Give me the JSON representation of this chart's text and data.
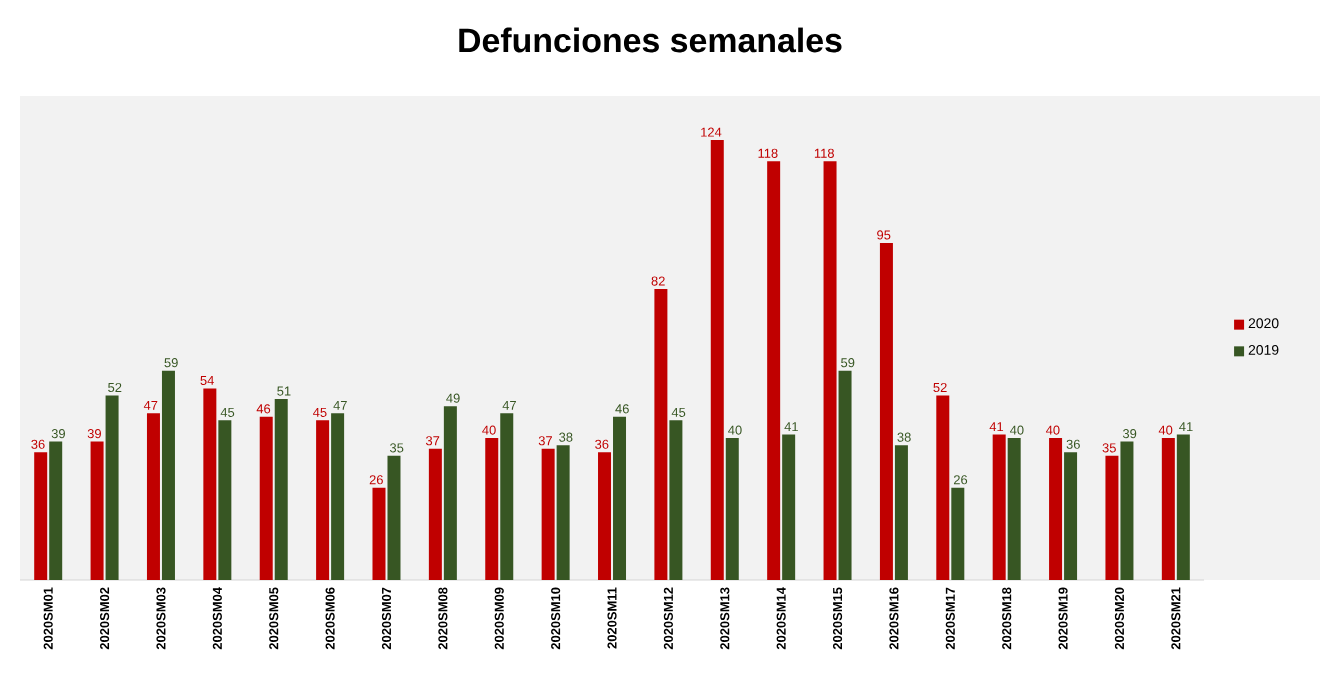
{
  "chart_data": {
    "type": "bar",
    "title": "Defunciones semanales",
    "categories": [
      "2020SM01",
      "2020SM02",
      "2020SM03",
      "2020SM04",
      "2020SM05",
      "2020SM06",
      "2020SM07",
      "2020SM08",
      "2020SM09",
      "2020SM10",
      "2020SM11",
      "2020SM12",
      "2020SM13",
      "2020SM14",
      "2020SM15",
      "2020SM16",
      "2020SM17",
      "2020SM18",
      "2020SM19",
      "2020SM20",
      "2020SM21"
    ],
    "series": [
      {
        "name": "2020",
        "color": "#c00000",
        "values": [
          36,
          39,
          47,
          54,
          46,
          45,
          26,
          37,
          40,
          37,
          36,
          82,
          124,
          118,
          118,
          95,
          52,
          41,
          40,
          35,
          40
        ]
      },
      {
        "name": "2019",
        "color": "#375623",
        "values": [
          39,
          52,
          59,
          45,
          51,
          47,
          35,
          49,
          47,
          38,
          46,
          45,
          40,
          41,
          59,
          38,
          26,
          40,
          36,
          39,
          41
        ]
      }
    ],
    "data_labels": true,
    "legend": "right"
  }
}
